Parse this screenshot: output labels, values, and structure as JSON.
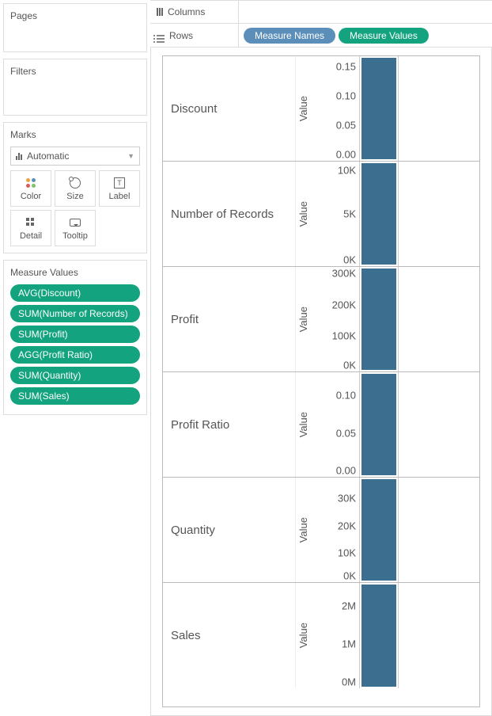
{
  "cards": {
    "pages": "Pages",
    "filters": "Filters",
    "marks": "Marks",
    "measure_values": "Measure Values"
  },
  "marks_dropdown": {
    "value": "Automatic"
  },
  "mark_buttons": [
    {
      "label": "Color"
    },
    {
      "label": "Size"
    },
    {
      "label": "Label"
    },
    {
      "label": "Detail"
    },
    {
      "label": "Tooltip"
    }
  ],
  "measure_pills": [
    "AVG(Discount)",
    "SUM(Number of Records)",
    "SUM(Profit)",
    "AGG(Profit Ratio)",
    "SUM(Quantity)",
    "SUM(Sales)"
  ],
  "pill_color": "#14a37f",
  "shelves": {
    "columns": {
      "label": "Columns",
      "pills": []
    },
    "rows": {
      "label": "Rows",
      "pills": [
        {
          "text": "Measure Names",
          "color": "#5b8fb9"
        },
        {
          "text": "Measure Values",
          "color": "#14a37f"
        }
      ]
    }
  },
  "bar_color": "#3b6e8f",
  "axis_title": "Value",
  "viz_rows": [
    {
      "name": "Discount",
      "ticks": [
        {
          "label": "0.15",
          "pos": 10
        },
        {
          "label": "0.10",
          "pos": 38
        },
        {
          "label": "0.05",
          "pos": 66
        },
        {
          "label": "0.00",
          "pos": 94
        }
      ],
      "bar_pct": 100
    },
    {
      "name": "Number of Records",
      "ticks": [
        {
          "label": "10K",
          "pos": 8
        },
        {
          "label": "5K",
          "pos": 50
        },
        {
          "label": "0K",
          "pos": 94
        }
      ],
      "bar_pct": 100
    },
    {
      "name": "Profit",
      "ticks": [
        {
          "label": "300K",
          "pos": 6
        },
        {
          "label": "200K",
          "pos": 36
        },
        {
          "label": "100K",
          "pos": 66
        },
        {
          "label": "0K",
          "pos": 94
        }
      ],
      "bar_pct": 100
    },
    {
      "name": "Profit Ratio",
      "ticks": [
        {
          "label": "0.10",
          "pos": 22
        },
        {
          "label": "0.05",
          "pos": 58
        },
        {
          "label": "0.00",
          "pos": 94
        }
      ],
      "bar_pct": 100
    },
    {
      "name": "Quantity",
      "ticks": [
        {
          "label": "30K",
          "pos": 20
        },
        {
          "label": "20K",
          "pos": 46
        },
        {
          "label": "10K",
          "pos": 72
        },
        {
          "label": "0K",
          "pos": 94
        }
      ],
      "bar_pct": 100
    },
    {
      "name": "Sales",
      "ticks": [
        {
          "label": "2M",
          "pos": 22
        },
        {
          "label": "1M",
          "pos": 58
        },
        {
          "label": "0M",
          "pos": 94
        }
      ],
      "bar_pct": 100
    }
  ]
}
